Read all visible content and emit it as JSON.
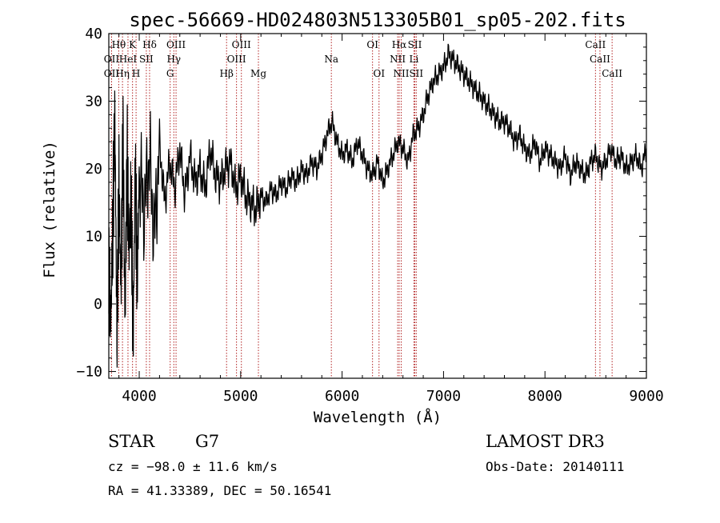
{
  "chart_data": {
    "type": "line",
    "title": "spec-56669-HD024803N513305B01_sp05-202.fits",
    "xlabel": "Wavelength (Å)",
    "ylabel": "Flux (relative)",
    "xlim": [
      3700,
      9000
    ],
    "ylim": [
      -11,
      40
    ],
    "xticks": [
      4000,
      5000,
      6000,
      7000,
      8000,
      9000
    ],
    "xtick_labels": [
      "4000",
      "5000",
      "6000",
      "7000",
      "8000",
      "9000"
    ],
    "yticks": [
      -10,
      0,
      10,
      20,
      30,
      40
    ],
    "ytick_labels": [
      "−10",
      "0",
      "10",
      "20",
      "30",
      "40"
    ],
    "spectrum": {
      "x": [
        3700,
        3720,
        3740,
        3760,
        3780,
        3800,
        3820,
        3840,
        3860,
        3880,
        3900,
        3920,
        3940,
        3960,
        3980,
        4000,
        4050,
        4100,
        4150,
        4200,
        4250,
        4300,
        4350,
        4400,
        4450,
        4500,
        4550,
        4600,
        4650,
        4700,
        4750,
        4800,
        4850,
        4900,
        4950,
        5000,
        5050,
        5100,
        5150,
        5200,
        5250,
        5300,
        5350,
        5400,
        5450,
        5500,
        5550,
        5600,
        5650,
        5700,
        5750,
        5800,
        5850,
        5900,
        5950,
        6000,
        6050,
        6100,
        6150,
        6200,
        6250,
        6300,
        6350,
        6400,
        6450,
        6500,
        6550,
        6600,
        6650,
        6700,
        6750,
        6800,
        6850,
        6900,
        6950,
        7000,
        7050,
        7100,
        7150,
        7200,
        7250,
        7300,
        7350,
        7400,
        7450,
        7500,
        7550,
        7600,
        7650,
        7700,
        7750,
        7800,
        7850,
        7900,
        7950,
        8000,
        8050,
        8100,
        8150,
        8200,
        8250,
        8300,
        8350,
        8400,
        8450,
        8500,
        8550,
        8600,
        8650,
        8700,
        8750,
        8800,
        8850,
        8900,
        8950,
        9000
      ],
      "y": [
        5,
        -2,
        12,
        28,
        -5,
        18,
        2,
        25,
        -3,
        22,
        8,
        16,
        -6,
        20,
        4,
        19,
        14,
        22,
        10,
        24,
        15,
        21,
        17,
        23,
        16,
        22,
        18,
        20,
        17,
        23,
        19,
        18,
        20,
        21,
        17,
        19,
        16,
        15,
        14,
        16,
        15,
        17,
        16,
        18,
        17,
        19,
        18,
        20,
        19,
        21,
        20,
        22,
        25,
        27,
        24,
        22,
        23,
        21,
        24,
        22,
        20,
        19,
        21,
        18,
        20,
        22,
        24,
        23,
        21,
        25,
        26,
        28,
        31,
        33,
        34,
        35,
        37,
        36,
        35,
        34,
        33,
        32,
        31,
        30,
        29,
        28,
        27,
        27,
        26,
        24,
        25,
        23,
        22,
        24,
        21,
        23,
        22,
        21,
        20,
        22,
        19,
        21,
        20,
        19,
        21,
        22,
        20,
        21,
        23,
        21,
        22,
        20,
        21,
        22,
        20,
        23
      ]
    },
    "lines": [
      {
        "label": "OII",
        "wl": 3727,
        "row": 2
      },
      {
        "label": "OII",
        "wl": 3727,
        "row": 3
      },
      {
        "label": "Hθ",
        "wl": 3798,
        "row": 1
      },
      {
        "label": "Hη",
        "wl": 3835,
        "row": 3
      },
      {
        "label": "HeI",
        "wl": 3889,
        "row": 2
      },
      {
        "label": "K",
        "wl": 3934,
        "row": 1
      },
      {
        "label": "H",
        "wl": 3969,
        "row": 3
      },
      {
        "label": "SII",
        "wl": 4070,
        "row": 2
      },
      {
        "label": "Hδ",
        "wl": 4102,
        "row": 1
      },
      {
        "label": "OIII",
        "wl": 4363,
        "row": 1
      },
      {
        "label": "Hγ",
        "wl": 4341,
        "row": 2
      },
      {
        "label": "G",
        "wl": 4305,
        "row": 3
      },
      {
        "label": "Hβ",
        "wl": 4861,
        "row": 3
      },
      {
        "label": "OIII",
        "wl": 4959,
        "row": 2
      },
      {
        "label": "OIII",
        "wl": 5007,
        "row": 1
      },
      {
        "label": "Mg",
        "wl": 5175,
        "row": 3
      },
      {
        "label": "Na",
        "wl": 5894,
        "row": 2
      },
      {
        "label": "OI",
        "wl": 6300,
        "row": 1
      },
      {
        "label": "OI",
        "wl": 6364,
        "row": 3
      },
      {
        "label": "Hα",
        "wl": 6563,
        "row": 1
      },
      {
        "label": "NII",
        "wl": 6548,
        "row": 2
      },
      {
        "label": "NII",
        "wl": 6583,
        "row": 3
      },
      {
        "label": "SII",
        "wl": 6717,
        "row": 1
      },
      {
        "label": "Li",
        "wl": 6708,
        "row": 2
      },
      {
        "label": "SII",
        "wl": 6731,
        "row": 3
      },
      {
        "label": "CaII",
        "wl": 8498,
        "row": 1
      },
      {
        "label": "CaII",
        "wl": 8542,
        "row": 2
      },
      {
        "label": "CaII",
        "wl": 8662,
        "row": 3
      }
    ]
  },
  "info": {
    "object_type": "STAR",
    "subclass": "G7",
    "survey": "LAMOST DR3",
    "redshift": "cz = −98.0 ± 11.6 km/s",
    "obs_date": "Obs-Date: 20140111",
    "coords": "RA =  41.33389, DEC =  50.16541"
  },
  "colors": {
    "line_marker": "#b22222",
    "spectrum": "#000000",
    "axes": "#000000"
  }
}
